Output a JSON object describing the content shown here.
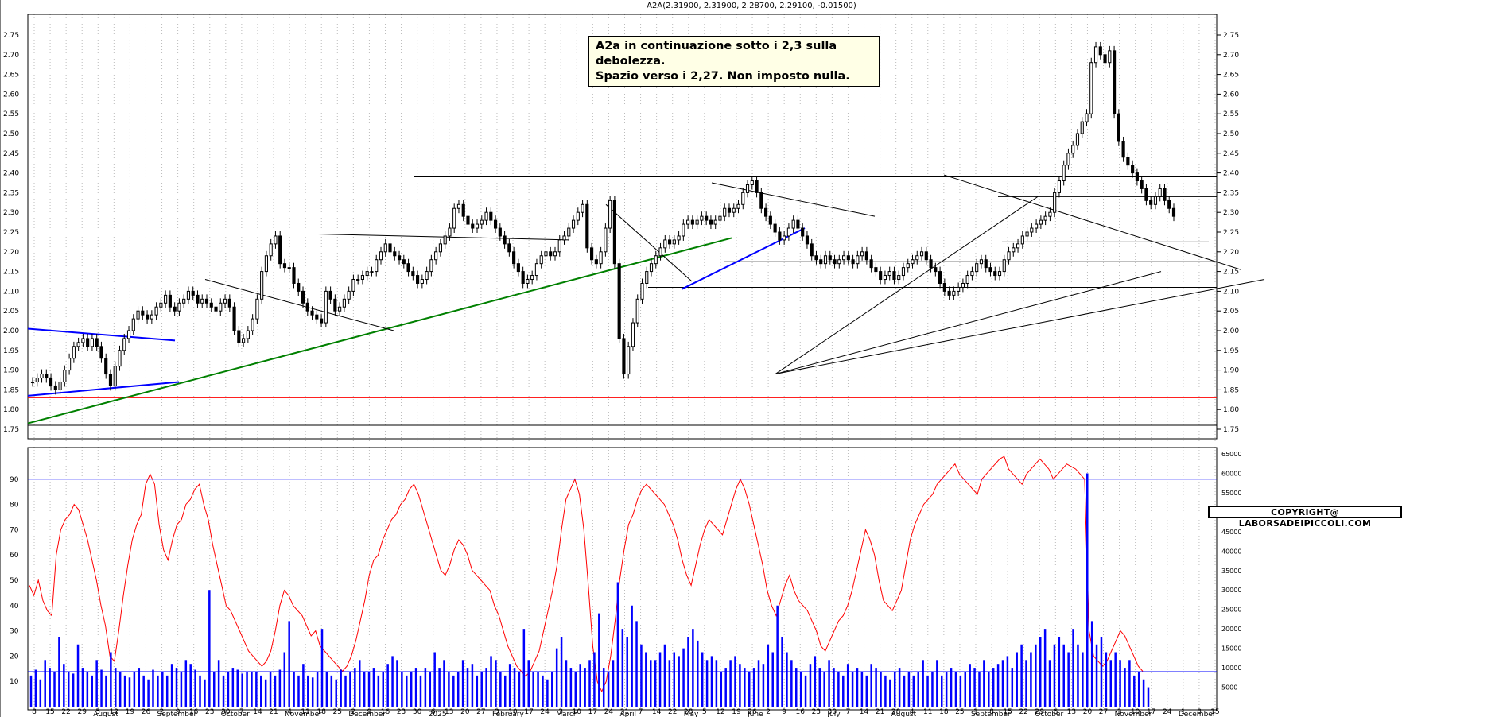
{
  "title": "A2A(2.31900, 2.31900, 2.28700, 2.29100, -0.01500)",
  "note": {
    "line1": "A2a in continuazione sotto i 2,3 sulla debolezza.",
    "line2": "Spazio verso i 2,27. Non imposto nulla."
  },
  "copyright": "COPYRIGHT@ LABORSADEIPICCOLI.COM",
  "colors": {
    "candle": "#000000",
    "oscillator": "#ff0000",
    "volume": "#0000ff",
    "support_red": "#ff0000",
    "trend_green": "#008000",
    "trend_blue": "#0000ff",
    "grid": "#bbbbbb"
  },
  "chart_data": [
    {
      "type": "candlestick",
      "name": "price",
      "ylim": [
        1.75,
        2.75
      ],
      "y_ticks": [
        "2.75",
        "2.70",
        "2.65",
        "2.60",
        "2.55",
        "2.50",
        "2.45",
        "2.40",
        "2.35",
        "2.30",
        "2.25",
        "2.20",
        "2.15",
        "2.10",
        "2.05",
        "2.00",
        "1.95",
        "1.90",
        "1.85",
        "1.80",
        "1.75"
      ],
      "x_day_ticks": [
        "8",
        "15",
        "22",
        "29",
        "5",
        "12",
        "19",
        "26",
        "2",
        "9",
        "16",
        "23",
        "30",
        "7",
        "14",
        "21",
        "4",
        "11",
        "18",
        "25",
        "2",
        "9",
        "16",
        "23",
        "30",
        "6",
        "13",
        "20",
        "27",
        "3",
        "10",
        "17",
        "24",
        "3",
        "10",
        "17",
        "24",
        "31",
        "7",
        "14",
        "22",
        "28",
        "5",
        "12",
        "19",
        "26",
        "2",
        "9",
        "16",
        "23",
        "30",
        "7",
        "14",
        "21",
        "28",
        "4",
        "11",
        "18",
        "25",
        "1",
        "8",
        "15",
        "22",
        "29",
        "6",
        "13",
        "20",
        "27",
        "3",
        "10",
        "17",
        "24",
        "1",
        "8",
        "15"
      ],
      "x_month_labels": [
        "August",
        "September",
        "October",
        "November",
        "December",
        "2025",
        "February",
        "March",
        "April",
        "May",
        "June",
        "July",
        "August",
        "September",
        "October",
        "November",
        "December"
      ],
      "closes": [
        1.87,
        1.88,
        1.89,
        1.88,
        1.86,
        1.85,
        1.87,
        1.9,
        1.93,
        1.96,
        1.97,
        1.98,
        1.96,
        1.98,
        1.96,
        1.93,
        1.89,
        1.86,
        1.91,
        1.95,
        1.98,
        2.0,
        2.03,
        2.05,
        2.04,
        2.03,
        2.04,
        2.06,
        2.07,
        2.09,
        2.06,
        2.05,
        2.07,
        2.08,
        2.1,
        2.09,
        2.07,
        2.08,
        2.07,
        2.06,
        2.05,
        2.07,
        2.08,
        2.06,
        2.0,
        1.97,
        1.98,
        2.0,
        2.03,
        2.08,
        2.15,
        2.19,
        2.22,
        2.24,
        2.17,
        2.16,
        2.16,
        2.12,
        2.1,
        2.07,
        2.05,
        2.04,
        2.03,
        2.02,
        2.1,
        2.08,
        2.05,
        2.06,
        2.08,
        2.1,
        2.13,
        2.13,
        2.14,
        2.15,
        2.15,
        2.18,
        2.2,
        2.22,
        2.2,
        2.19,
        2.18,
        2.17,
        2.15,
        2.14,
        2.12,
        2.13,
        2.15,
        2.18,
        2.2,
        2.22,
        2.24,
        2.26,
        2.31,
        2.32,
        2.29,
        2.27,
        2.26,
        2.27,
        2.28,
        2.3,
        2.28,
        2.26,
        2.24,
        2.22,
        2.2,
        2.17,
        2.15,
        2.12,
        2.13,
        2.14,
        2.17,
        2.19,
        2.2,
        2.19,
        2.2,
        2.23,
        2.24,
        2.26,
        2.28,
        2.3,
        2.32,
        2.21,
        2.18,
        2.17,
        2.2,
        2.26,
        2.33,
        2.17,
        1.98,
        1.89,
        1.96,
        2.02,
        2.08,
        2.12,
        2.15,
        2.17,
        2.19,
        2.21,
        2.23,
        2.22,
        2.23,
        2.24,
        2.27,
        2.28,
        2.27,
        2.28,
        2.29,
        2.28,
        2.27,
        2.28,
        2.29,
        2.31,
        2.3,
        2.31,
        2.32,
        2.35,
        2.37,
        2.38,
        2.35,
        2.31,
        2.29,
        2.27,
        2.25,
        2.23,
        2.24,
        2.26,
        2.28,
        2.26,
        2.24,
        2.22,
        2.19,
        2.18,
        2.17,
        2.19,
        2.18,
        2.17,
        2.18,
        2.19,
        2.18,
        2.17,
        2.19,
        2.2,
        2.18,
        2.16,
        2.15,
        2.13,
        2.14,
        2.15,
        2.13,
        2.14,
        2.16,
        2.17,
        2.18,
        2.19,
        2.2,
        2.18,
        2.16,
        2.15,
        2.12,
        2.1,
        2.09,
        2.1,
        2.11,
        2.12,
        2.14,
        2.15,
        2.17,
        2.18,
        2.16,
        2.15,
        2.14,
        2.15,
        2.18,
        2.2,
        2.21,
        2.22,
        2.24,
        2.25,
        2.26,
        2.27,
        2.28,
        2.29,
        2.3,
        2.35,
        2.38,
        2.42,
        2.45,
        2.47,
        2.5,
        2.53,
        2.55,
        2.68,
        2.72,
        2.7,
        2.68,
        2.71,
        2.55,
        2.48,
        2.44,
        2.42,
        2.4,
        2.38,
        2.36,
        2.33,
        2.32,
        2.34,
        2.36,
        2.33,
        2.31,
        2.29
      ]
    },
    {
      "type": "line",
      "name": "oscillator",
      "ylim": [
        0,
        100
      ],
      "y_ticks": [
        "90",
        "80",
        "70",
        "60",
        "50",
        "40",
        "30",
        "20",
        "10"
      ],
      "level_line": 90,
      "values": [
        48,
        44,
        50,
        42,
        38,
        36,
        60,
        70,
        74,
        76,
        80,
        78,
        72,
        66,
        58,
        50,
        40,
        32,
        20,
        18,
        30,
        44,
        56,
        66,
        72,
        76,
        88,
        92,
        88,
        72,
        62,
        58,
        66,
        72,
        74,
        80,
        82,
        86,
        88,
        80,
        74,
        64,
        56,
        48,
        40,
        38,
        34,
        30,
        26,
        22,
        20,
        18,
        16,
        18,
        22,
        30,
        40,
        46,
        44,
        40,
        38,
        36,
        32,
        28,
        30,
        24,
        22,
        20,
        18,
        16,
        14,
        16,
        20,
        26,
        34,
        42,
        52,
        58,
        60,
        66,
        70,
        74,
        76,
        80,
        82,
        86,
        88,
        84,
        78,
        72,
        66,
        60,
        54,
        52,
        56,
        62,
        66,
        64,
        60,
        54,
        52,
        50,
        48,
        46,
        40,
        36,
        30,
        24,
        20,
        16,
        14,
        12,
        14,
        18,
        22,
        30,
        38,
        46,
        56,
        70,
        82,
        86,
        90,
        84,
        70,
        48,
        24,
        10,
        6,
        10,
        20,
        34,
        50,
        62,
        72,
        76,
        82,
        86,
        88,
        86,
        84,
        82,
        80,
        76,
        72,
        66,
        58,
        52,
        48,
        56,
        64,
        70,
        74,
        72,
        70,
        68,
        74,
        80,
        86,
        90,
        86,
        80,
        72,
        64,
        56,
        46,
        40,
        36,
        42,
        48,
        52,
        46,
        42,
        40,
        38,
        34,
        30,
        24,
        22,
        26,
        30,
        34,
        36,
        40,
        46,
        54,
        62,
        70,
        66,
        60,
        50,
        42,
        40,
        38,
        42,
        46,
        56,
        66,
        72,
        76,
        80,
        82,
        84,
        88,
        90,
        92,
        94,
        96,
        92,
        90,
        88,
        86,
        84,
        90,
        92,
        94,
        96,
        98,
        99,
        94,
        92,
        90,
        88,
        92,
        94,
        96,
        98,
        96,
        94,
        90,
        92,
        94,
        96,
        95,
        94,
        92,
        90,
        30,
        20,
        18,
        16,
        18,
        22,
        26,
        30,
        28,
        24,
        20,
        16,
        14
      ]
    },
    {
      "type": "bar",
      "name": "volume",
      "ylim": [
        0,
        65000
      ],
      "y_ticks": [
        "65000",
        "60000",
        "55000",
        "50000",
        "45000",
        "40000",
        "35000",
        "30000",
        "25000",
        "20000",
        "15000",
        "10000",
        "5000"
      ],
      "level_line": 9000,
      "values": [
        8000,
        9500,
        7000,
        12000,
        10000,
        9000,
        18000,
        11000,
        9000,
        8500,
        16000,
        10000,
        9000,
        8000,
        12000,
        9500,
        8000,
        14000,
        10000,
        9000,
        8000,
        7500,
        9000,
        10000,
        8000,
        7000,
        9500,
        8000,
        9000,
        8000,
        11000,
        10000,
        9000,
        12000,
        11000,
        9500,
        8000,
        7000,
        30000,
        9000,
        12000,
        8000,
        9000,
        10000,
        9500,
        8500,
        9000,
        9000,
        9000,
        8000,
        7000,
        9000,
        8000,
        9500,
        14000,
        22000,
        9000,
        8000,
        11000,
        8000,
        7500,
        9000,
        20000,
        9000,
        8000,
        7000,
        9500,
        8000,
        9000,
        10000,
        12000,
        9000,
        9000,
        10000,
        8000,
        9000,
        11000,
        13000,
        12000,
        9000,
        8000,
        9000,
        10000,
        8000,
        10000,
        9000,
        14000,
        10000,
        12000,
        9000,
        8000,
        9000,
        12000,
        10000,
        11000,
        8000,
        9000,
        10000,
        13000,
        12000,
        9000,
        8000,
        11000,
        10000,
        9000,
        20000,
        12000,
        9000,
        9000,
        8000,
        7000,
        9000,
        15000,
        18000,
        12000,
        10000,
        9000,
        11000,
        10000,
        12000,
        14000,
        24000,
        10000,
        9000,
        12000,
        32000,
        20000,
        18000,
        26000,
        22000,
        16000,
        14000,
        12000,
        12000,
        14000,
        16000,
        12000,
        14000,
        13000,
        15000,
        18000,
        20000,
        17000,
        14000,
        12000,
        13000,
        12000,
        9000,
        10000,
        12000,
        13000,
        11000,
        10000,
        9000,
        10000,
        12000,
        11000,
        16000,
        14000,
        26000,
        18000,
        14000,
        12000,
        10000,
        9000,
        8000,
        11000,
        13000,
        10000,
        9000,
        12000,
        10000,
        9000,
        8000,
        11000,
        9000,
        10000,
        9000,
        8000,
        11000,
        10000,
        9000,
        8000,
        7000,
        9000,
        10000,
        8000,
        9000,
        8000,
        9000,
        12000,
        8000,
        9000,
        12000,
        8000,
        9000,
        10000,
        9000,
        8000,
        9000,
        11000,
        10000,
        9000,
        12000,
        9000,
        10000,
        11000,
        12000,
        13000,
        10000,
        14000,
        16000,
        12000,
        14000,
        16000,
        18000,
        20000,
        12000,
        16000,
        18000,
        16000,
        14000,
        20000,
        16000,
        14000,
        60000,
        22000,
        16000,
        18000,
        14000,
        12000,
        14000,
        12000,
        10000,
        12000,
        8000,
        9000,
        7000,
        5000
      ]
    }
  ]
}
